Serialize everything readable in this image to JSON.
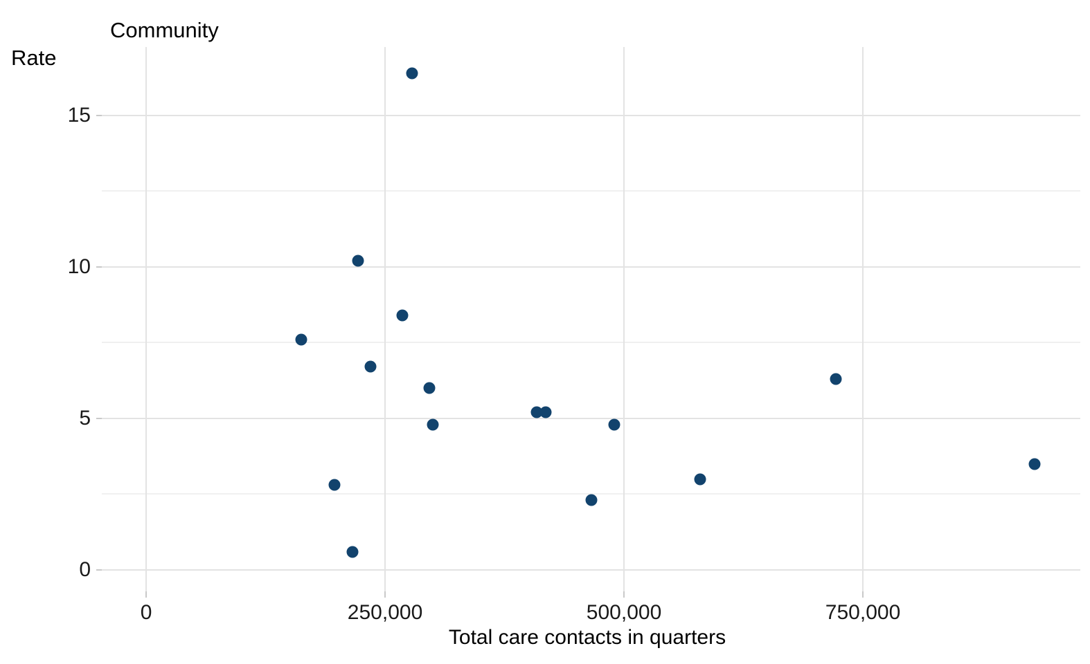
{
  "chart_data": {
    "type": "scatter",
    "title": "Community",
    "xlabel": "Total care contacts in quarters",
    "ylabel": "Rate",
    "points": [
      {
        "x": 278000,
        "y": 16.4
      },
      {
        "x": 222000,
        "y": 10.2
      },
      {
        "x": 268000,
        "y": 8.4
      },
      {
        "x": 162000,
        "y": 7.6
      },
      {
        "x": 235000,
        "y": 6.7
      },
      {
        "x": 296000,
        "y": 6.0
      },
      {
        "x": 409000,
        "y": 5.2
      },
      {
        "x": 418000,
        "y": 5.2
      },
      {
        "x": 300000,
        "y": 4.8
      },
      {
        "x": 490000,
        "y": 4.8
      },
      {
        "x": 722000,
        "y": 6.3
      },
      {
        "x": 197000,
        "y": 2.8
      },
      {
        "x": 466000,
        "y": 2.3
      },
      {
        "x": 580000,
        "y": 3.0
      },
      {
        "x": 216000,
        "y": 0.6
      },
      {
        "x": 930000,
        "y": 3.5
      }
    ],
    "xlim": [
      -46400,
      977500
    ],
    "ylim": [
      -0.71,
      17.26
    ],
    "x_ticks": [
      0,
      250000,
      500000,
      750000
    ],
    "x_tick_labels": [
      "0",
      "250,000",
      "500,000",
      "750,000"
    ],
    "y_ticks": [
      0,
      5,
      10,
      15
    ],
    "y_tick_labels": [
      "0",
      "5",
      "10",
      "15"
    ],
    "y_minor_ticks": [
      2.5,
      7.5,
      12.5
    ],
    "grid": "y-major+y-minor+x-major",
    "legend": "none",
    "point_color": "#12436d",
    "gridline_color": "#e3e3e3",
    "minor_gridline_color": "#f0f0f0",
    "tick_mark_color": "#c9c9c9",
    "text_color": "#1a1a1a",
    "background_color": "#ffffff"
  }
}
